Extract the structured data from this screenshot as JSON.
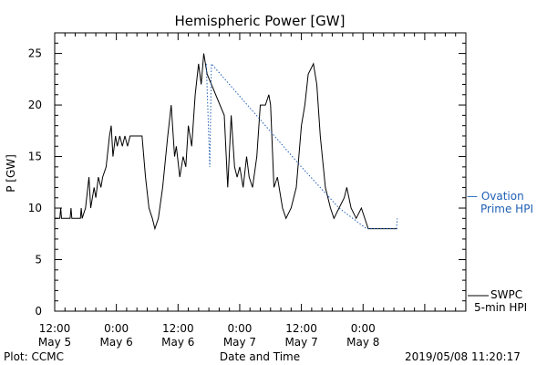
{
  "chart_data": {
    "type": "line",
    "title": "Hemispheric Power [GW]",
    "xlabel": "Date and Time",
    "ylabel": "P [GW]",
    "xlim": [
      "2019-05-05 12:00",
      "2019-05-08 20:00"
    ],
    "ylim": [
      0,
      27
    ],
    "y_ticks": [
      0,
      5,
      10,
      15,
      20,
      25
    ],
    "x_ticks": [
      {
        "time": "2019-05-05 12:00",
        "line1": "12:00",
        "line2": "May 5"
      },
      {
        "time": "2019-05-06 00:00",
        "line1": "0:00",
        "line2": "May 6"
      },
      {
        "time": "2019-05-06 12:00",
        "line1": "12:00",
        "line2": "May 6"
      },
      {
        "time": "2019-05-07 00:00",
        "line1": "0:00",
        "line2": "May 7"
      },
      {
        "time": "2019-05-07 12:00",
        "line1": "12:00",
        "line2": "May 7"
      },
      {
        "time": "2019-05-08 00:00",
        "line1": "0:00",
        "line2": "May 8"
      }
    ],
    "series": [
      {
        "name_lines": [
          "SWPC",
          "5-min HPI"
        ],
        "color": "#000000",
        "style": "solid",
        "points": [
          [
            "2019-05-05 12:00",
            9
          ],
          [
            "2019-05-05 13:00",
            9
          ],
          [
            "2019-05-05 13:10",
            10
          ],
          [
            "2019-05-05 13:20",
            9
          ],
          [
            "2019-05-05 15:00",
            9
          ],
          [
            "2019-05-05 15:10",
            10
          ],
          [
            "2019-05-05 15:20",
            9
          ],
          [
            "2019-05-05 17:00",
            9
          ],
          [
            "2019-05-05 17:10",
            10
          ],
          [
            "2019-05-05 17:20",
            9
          ],
          [
            "2019-05-05 18:00",
            10
          ],
          [
            "2019-05-05 18:40",
            13
          ],
          [
            "2019-05-05 19:00",
            10
          ],
          [
            "2019-05-05 19:40",
            12
          ],
          [
            "2019-05-05 20:00",
            11
          ],
          [
            "2019-05-05 20:30",
            13
          ],
          [
            "2019-05-05 21:00",
            12
          ],
          [
            "2019-05-05 21:20",
            13
          ],
          [
            "2019-05-05 22:00",
            14
          ],
          [
            "2019-05-05 22:40",
            17
          ],
          [
            "2019-05-05 23:00",
            18
          ],
          [
            "2019-05-05 23:20",
            15
          ],
          [
            "2019-05-05 23:50",
            17
          ],
          [
            "2019-05-06 00:10",
            16
          ],
          [
            "2019-05-06 00:40",
            17
          ],
          [
            "2019-05-06 01:10",
            16
          ],
          [
            "2019-05-06 01:40",
            17
          ],
          [
            "2019-05-06 02:10",
            16
          ],
          [
            "2019-05-06 02:40",
            17
          ],
          [
            "2019-05-06 05:00",
            17
          ],
          [
            "2019-05-06 05:40",
            13
          ],
          [
            "2019-05-06 06:20",
            10
          ],
          [
            "2019-05-06 07:00",
            9
          ],
          [
            "2019-05-06 07:30",
            8
          ],
          [
            "2019-05-06 08:10",
            9
          ],
          [
            "2019-05-06 09:00",
            12
          ],
          [
            "2019-05-06 10:00",
            17
          ],
          [
            "2019-05-06 10:40",
            20
          ],
          [
            "2019-05-06 11:20",
            15
          ],
          [
            "2019-05-06 11:40",
            16
          ],
          [
            "2019-05-06 12:20",
            13
          ],
          [
            "2019-05-06 13:00",
            15
          ],
          [
            "2019-05-06 13:30",
            14
          ],
          [
            "2019-05-06 14:00",
            18
          ],
          [
            "2019-05-06 14:40",
            16
          ],
          [
            "2019-05-06 15:20",
            21
          ],
          [
            "2019-05-06 16:00",
            24
          ],
          [
            "2019-05-06 16:30",
            22
          ],
          [
            "2019-05-06 17:00",
            25
          ],
          [
            "2019-05-06 17:40",
            23
          ],
          [
            "2019-05-06 21:00",
            19
          ],
          [
            "2019-05-06 21:40",
            12
          ],
          [
            "2019-05-06 22:20",
            19
          ],
          [
            "2019-05-06 23:00",
            14
          ],
          [
            "2019-05-06 23:30",
            13
          ],
          [
            "2019-05-07 00:00",
            14
          ],
          [
            "2019-05-07 00:40",
            12
          ],
          [
            "2019-05-07 01:20",
            15
          ],
          [
            "2019-05-07 01:50",
            13
          ],
          [
            "2019-05-07 02:30",
            12
          ],
          [
            "2019-05-07 03:20",
            15
          ],
          [
            "2019-05-07 04:00",
            20
          ],
          [
            "2019-05-07 05:00",
            20
          ],
          [
            "2019-05-07 05:40",
            21
          ],
          [
            "2019-05-07 06:00",
            20
          ],
          [
            "2019-05-07 06:40",
            12
          ],
          [
            "2019-05-07 07:20",
            13
          ],
          [
            "2019-05-07 08:20",
            10
          ],
          [
            "2019-05-07 09:00",
            9
          ],
          [
            "2019-05-07 10:00",
            10
          ],
          [
            "2019-05-07 11:00",
            12
          ],
          [
            "2019-05-07 12:00",
            18
          ],
          [
            "2019-05-07 12:40",
            20
          ],
          [
            "2019-05-07 13:20",
            23
          ],
          [
            "2019-05-07 14:20",
            24
          ],
          [
            "2019-05-07 15:00",
            22
          ],
          [
            "2019-05-07 15:40",
            17
          ],
          [
            "2019-05-07 16:40",
            12
          ],
          [
            "2019-05-07 17:40",
            10
          ],
          [
            "2019-05-07 18:20",
            9
          ],
          [
            "2019-05-07 19:20",
            10
          ],
          [
            "2019-05-07 20:20",
            11
          ],
          [
            "2019-05-07 20:50",
            12
          ],
          [
            "2019-05-07 21:40",
            10
          ],
          [
            "2019-05-07 22:40",
            9
          ],
          [
            "2019-05-07 23:40",
            10
          ],
          [
            "2019-05-08 01:00",
            8
          ],
          [
            "2019-05-08 06:40",
            8
          ]
        ]
      },
      {
        "name_lines": [
          "— Ovation",
          "Prime HPI"
        ],
        "color": "#1f5fb4",
        "style": "dotted",
        "points": [
          [
            "2019-05-06 17:30",
            24
          ],
          [
            "2019-05-06 18:10",
            14
          ],
          [
            "2019-05-06 18:30",
            24
          ],
          [
            "2019-05-07 12:00",
            14
          ],
          [
            "2019-05-07 19:20",
            10
          ],
          [
            "2019-05-08 00:40",
            8
          ],
          [
            "2019-05-08 06:30",
            8
          ],
          [
            "2019-05-08 06:40",
            9
          ]
        ]
      }
    ]
  },
  "footer": {
    "left": "Plot: CCMC",
    "right": "2019/05/08 11:20:17"
  }
}
